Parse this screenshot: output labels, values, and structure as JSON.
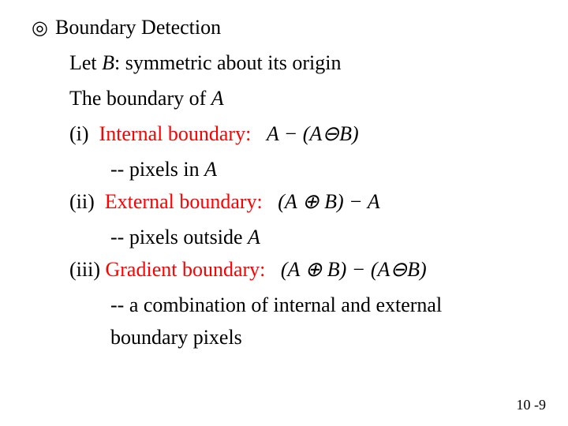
{
  "bullet_glyph": "◎",
  "title": "Boundary Detection",
  "let_prefix": "Let ",
  "let_var": "B",
  "let_suffix": ": symmetric about its origin",
  "boundary_prefix": "The boundary of ",
  "boundary_var": "A",
  "items": {
    "i": {
      "num": "(i)",
      "label": "Internal boundary:",
      "formula": "A − (A⊖B)",
      "note_prefix": "-- pixels in ",
      "note_var": "A"
    },
    "ii": {
      "num": "(ii)",
      "label": "External boundary:",
      "formula": "(A ⊕ B) − A",
      "note_prefix": "-- pixels outside ",
      "note_var": "A"
    },
    "iii": {
      "num": "(iii)",
      "label": "Gradient boundary:",
      "formula": "(A ⊕ B) − (A⊖B)",
      "note1": "-- a combination of internal and external",
      "note2": "boundary pixels"
    }
  },
  "page": "10 -9",
  "colors": {
    "text": "#000000",
    "accent": "#ff0000",
    "background": "#ffffff"
  },
  "fontsize_body_pt": 26,
  "fontsize_pagenum_pt": 18
}
